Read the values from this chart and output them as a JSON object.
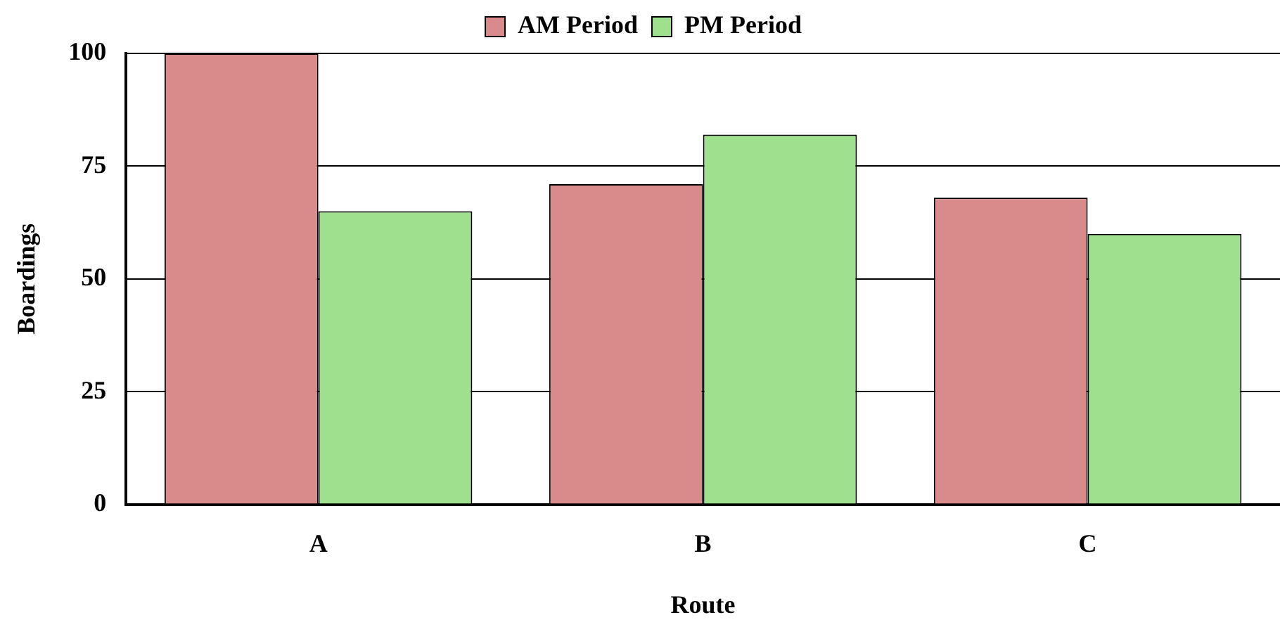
{
  "chart_data": {
    "type": "bar",
    "xlabel": "Route",
    "ylabel": "Boardings",
    "categories": [
      "A",
      "B",
      "C"
    ],
    "series": [
      {
        "name": "AM Period",
        "color": "#d98a8a",
        "values": [
          100,
          71,
          68
        ]
      },
      {
        "name": "PM Period",
        "color": "#9ee08e",
        "values": [
          65,
          82,
          60
        ]
      }
    ],
    "ylim": [
      0,
      100
    ],
    "yticks": [
      0,
      25,
      50,
      75,
      100
    ],
    "grid": "y",
    "legend": "top"
  }
}
